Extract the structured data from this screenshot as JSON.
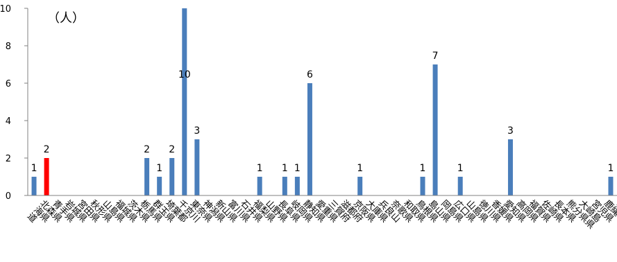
{
  "chart_data": {
    "type": "bar",
    "unit_label": "（人）",
    "ylim": [
      0,
      10
    ],
    "yticks": [
      0,
      2,
      4,
      6,
      8,
      10
    ],
    "grid": false,
    "categories": [
      "北海道",
      "青森県",
      "岩手県",
      "宮城県",
      "秋田県",
      "山形県",
      "福島県",
      "茨城県",
      "栃木県",
      "群馬県",
      "埼玉県",
      "千葉県",
      "東京都",
      "神奈川",
      "新潟県",
      "富山県",
      "石川県",
      "福井県",
      "山梨県",
      "長野県",
      "岐阜県",
      "静岡県",
      "愛知県",
      "三重県",
      "滋賀県",
      "京都府",
      "大阪府",
      "兵庫県",
      "奈良県",
      "和歌山",
      "鳥取県",
      "島根県",
      "岡山県",
      "広島県",
      "山口県",
      "徳島県",
      "香川県",
      "愛媛県",
      "高知県",
      "福岡県",
      "佐賀県",
      "長崎県",
      "熊本県",
      "大分県",
      "宮崎県",
      "鹿児島県",
      "沖縄県"
    ],
    "values": [
      1,
      2,
      0,
      0,
      0,
      0,
      0,
      0,
      0,
      2,
      1,
      2,
      10,
      3,
      0,
      0,
      0,
      0,
      1,
      0,
      1,
      1,
      6,
      0,
      0,
      0,
      1,
      0,
      0,
      0,
      0,
      1,
      7,
      0,
      1,
      0,
      0,
      0,
      3,
      0,
      0,
      0,
      0,
      0,
      0,
      0,
      1
    ],
    "highlight_index": 1,
    "colors": {
      "bar": "#4a7ebb",
      "highlight": "#ff0000",
      "axis": "#808080"
    }
  }
}
